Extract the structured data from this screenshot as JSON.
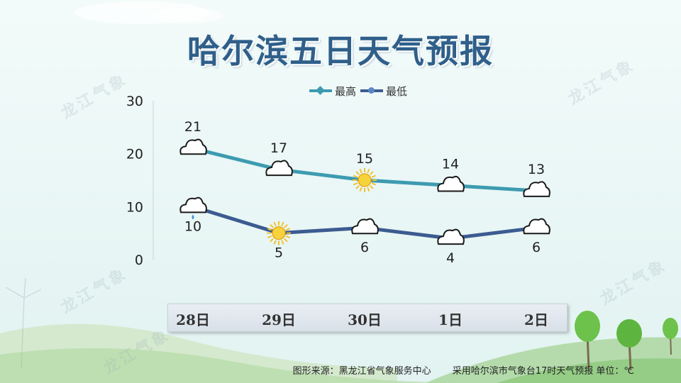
{
  "title": "哈尔滨五日天气预报",
  "watermark_text": "龙江气象",
  "footer": {
    "source": "图形来源：黑龙江省气象服务中心",
    "note": "采用哈尔滨市气象台17时天气预报 单位：℃"
  },
  "colors": {
    "high_series": "#3d9bb0",
    "low_series": "#3c5b91",
    "title": "#2f5f8a"
  },
  "chart_data": {
    "type": "line",
    "categories": [
      "28日",
      "29日",
      "30日",
      "1日",
      "2日"
    ],
    "series": [
      {
        "name": "最高",
        "values": [
          21,
          17,
          15,
          14,
          13
        ],
        "weather_icons": [
          "cloud-icon",
          "cloud-icon",
          "sun-icon",
          "cloud-icon",
          "cloud-icon"
        ]
      },
      {
        "name": "最低",
        "values": [
          10,
          5,
          6,
          4,
          6
        ],
        "weather_icons": [
          "rain-cloud-icon",
          "sun-icon",
          "cloud-icon",
          "cloud-icon",
          "cloud-icon"
        ]
      }
    ],
    "ylim": [
      0,
      30
    ],
    "yticks": [
      0,
      10,
      20,
      30
    ],
    "grid": false,
    "legend": "top-center",
    "xlabel": "",
    "ylabel": ""
  }
}
